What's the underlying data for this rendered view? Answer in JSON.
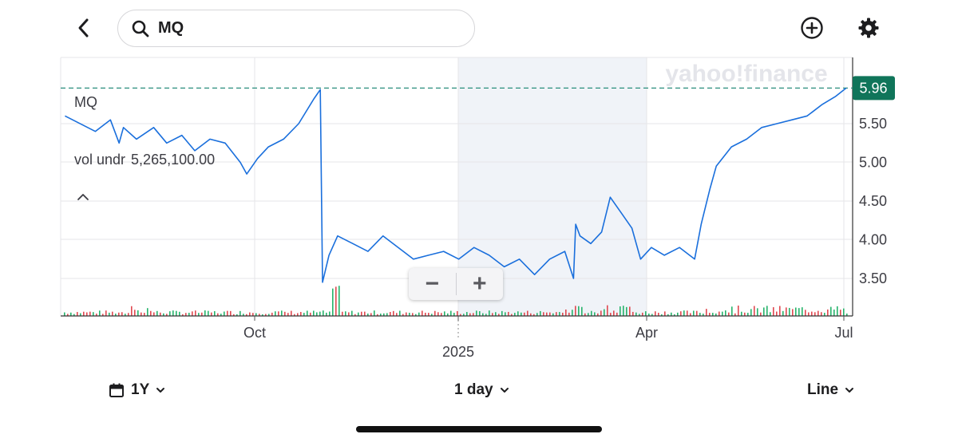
{
  "header": {
    "back_icon": "chevron-left-icon",
    "search": {
      "value": "MQ",
      "icon": "search-icon"
    },
    "add_icon": "plus-circle-icon",
    "settings_icon": "gear-icon"
  },
  "chart_overlay": {
    "watermark": "yahoo!finance",
    "symbol_label": "MQ",
    "volume_label": "vol undr",
    "volume_value": "5,265,100.00",
    "collapse_icon": "chevron-up-icon",
    "current_price": "5.96"
  },
  "zoom": {
    "minus_label": "−",
    "plus_label": "+"
  },
  "controls": {
    "range": {
      "label": "1Y",
      "icon": "calendar-icon"
    },
    "interval": {
      "label": "1 day"
    },
    "chart_type": {
      "label": "Line"
    }
  },
  "colors": {
    "line": "#1a6fdc",
    "price_badge": "#10755a",
    "volume_up": "#26b36b",
    "volume_down": "#e0484f",
    "highlight": "#f0f3f8"
  },
  "chart_data": {
    "type": "line",
    "title": "",
    "xlabel": "",
    "ylabel": "",
    "x_ticks": [
      "Oct",
      "2025",
      "Apr",
      "Jul"
    ],
    "y_ticks": [
      "5.50",
      "5.00",
      "4.50",
      "4.00",
      "3.50"
    ],
    "ylim": [
      3.05,
      6.3
    ],
    "grid": true,
    "last_price": 5.96,
    "highlight_range": [
      "2025-01-01",
      "2025-03-31"
    ],
    "series": [
      {
        "type": "line",
        "x": [
          "2024-07-12",
          "2024-07-26",
          "2024-08-02",
          "2024-08-06",
          "2024-08-08",
          "2024-08-14",
          "2024-08-22",
          "2024-08-28",
          "2024-09-04",
          "2024-09-10",
          "2024-09-17",
          "2024-09-24",
          "2024-10-01",
          "2024-10-04",
          "2024-10-09",
          "2024-10-14",
          "2024-10-21",
          "2024-10-28",
          "2024-11-04",
          "2024-11-07",
          "2024-11-08",
          "2024-11-11",
          "2024-11-15",
          "2024-11-22",
          "2024-11-29",
          "2024-12-06",
          "2024-12-13",
          "2024-12-20",
          "2024-12-27",
          "2025-01-03",
          "2025-01-10",
          "2025-01-17",
          "2025-01-24",
          "2025-01-31",
          "2025-02-07",
          "2025-02-14",
          "2025-02-21",
          "2025-02-28",
          "2025-03-04",
          "2025-03-05",
          "2025-03-07",
          "2025-03-12",
          "2025-03-17",
          "2025-03-21",
          "2025-03-26",
          "2025-03-31",
          "2025-04-04",
          "2025-04-09",
          "2025-04-15",
          "2025-04-22",
          "2025-04-29",
          "2025-05-02",
          "2025-05-06",
          "2025-05-09",
          "2025-05-16",
          "2025-05-23",
          "2025-05-30",
          "2025-06-06",
          "2025-06-13",
          "2025-06-20",
          "2025-06-27",
          "2025-07-03",
          "2025-07-08"
        ],
        "y": [
          5.6,
          5.4,
          5.55,
          5.25,
          5.45,
          5.3,
          5.45,
          5.25,
          5.35,
          5.15,
          5.3,
          5.25,
          5.0,
          4.85,
          5.05,
          5.2,
          5.3,
          5.5,
          5.82,
          5.94,
          3.45,
          3.8,
          4.05,
          3.95,
          3.85,
          4.05,
          3.9,
          3.75,
          3.8,
          3.85,
          3.75,
          3.9,
          3.8,
          3.65,
          3.75,
          3.55,
          3.75,
          3.85,
          3.5,
          4.2,
          4.05,
          3.95,
          4.1,
          4.55,
          4.35,
          4.15,
          3.75,
          3.9,
          3.8,
          3.9,
          3.75,
          4.2,
          4.65,
          4.95,
          5.2,
          5.3,
          5.45,
          5.5,
          5.55,
          5.6,
          5.75,
          5.85,
          5.96
        ]
      },
      {
        "type": "volume",
        "name": "vol undr",
        "note": "volume bars along the bottom of the chart; peak reading 5,265,100.00"
      }
    ]
  }
}
